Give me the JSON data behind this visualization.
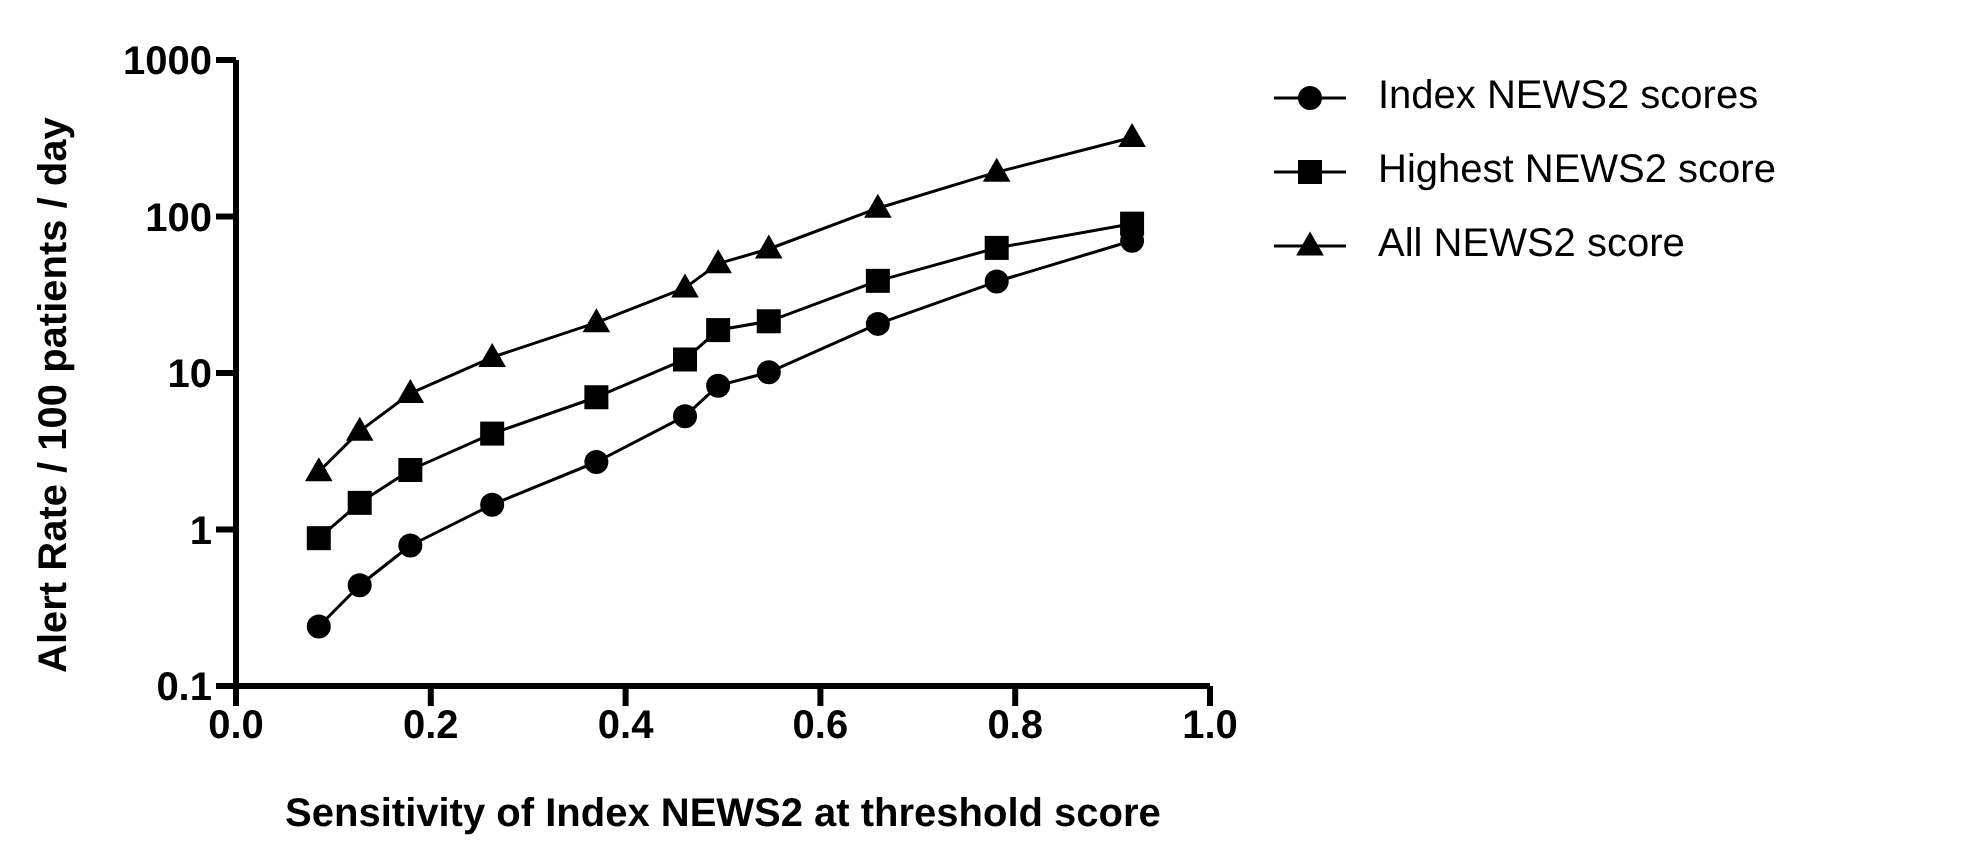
{
  "chart_data": {
    "type": "line",
    "xlabel": "Sensitivity of Index NEWS2 at threshold score",
    "ylabel": "Alert Rate / 100 patients / day",
    "x": [
      0.085,
      0.127,
      0.179,
      0.263,
      0.37,
      0.461,
      0.495,
      0.547,
      0.659,
      0.781,
      0.92
    ],
    "series": [
      {
        "name": "Index NEWS2 scores",
        "color": "#000000",
        "marker": "circle",
        "values": [
          0.24,
          0.44,
          0.79,
          1.44,
          2.7,
          5.3,
          8.3,
          10.1,
          20.6,
          38.4,
          70
        ]
      },
      {
        "name": "Highest NEWS2 score",
        "color": "#000000",
        "marker": "square",
        "values": [
          0.88,
          1.48,
          2.4,
          4.1,
          7,
          12.2,
          18.8,
          21.4,
          38.8,
          63,
          90
        ]
      },
      {
        "name": "All NEWS2 score",
        "color": "#000000",
        "marker": "triangle",
        "values": [
          2.34,
          4.25,
          7.4,
          12.6,
          21,
          35,
          50,
          62,
          113,
          192,
          320
        ]
      }
    ],
    "xlim": [
      0,
      1
    ],
    "xticks": [
      {
        "value": 0,
        "label": "0.0"
      },
      {
        "value": 0.2,
        "label": "0.2"
      },
      {
        "value": 0.4,
        "label": "0.4"
      },
      {
        "value": 0.6,
        "label": "0.6"
      },
      {
        "value": 0.8,
        "label": "0.8"
      },
      {
        "value": 1,
        "label": "1.0"
      }
    ],
    "ylim": [
      0.1,
      1000
    ],
    "yticks": [
      0.1,
      1,
      10,
      100,
      1000
    ],
    "log": "y",
    "grid": false,
    "legend": "top right",
    "line_style": "solid"
  }
}
